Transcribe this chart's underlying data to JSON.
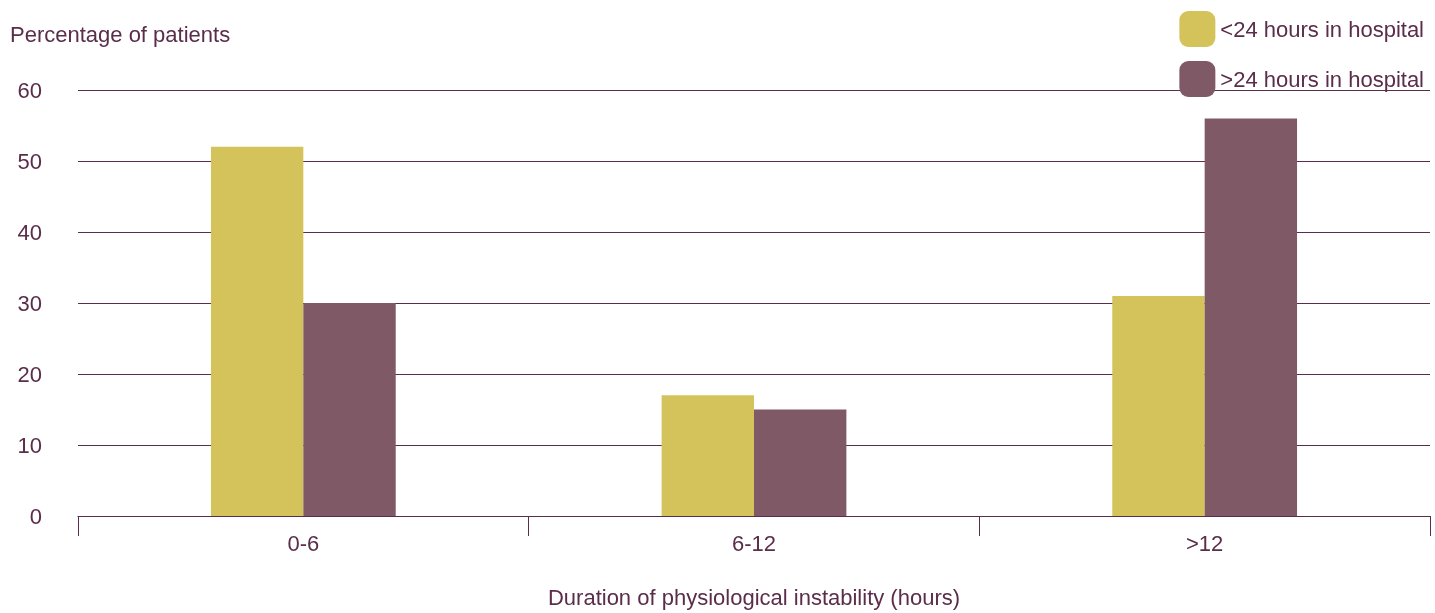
{
  "chart_data": {
    "type": "bar",
    "ylabel": "Percentage of patients",
    "xlabel": "Duration of physiological instability (hours)",
    "categories": [
      "0-6",
      "6-12",
      ">12"
    ],
    "series": [
      {
        "name": "<24 hours in hospital",
        "color": "#d4c35a",
        "values": [
          52,
          17,
          31
        ]
      },
      {
        "name": ">24 hours in hospital",
        "color": "#7f5a66",
        "values": [
          30,
          15,
          56
        ]
      }
    ],
    "ylim": [
      0,
      60
    ],
    "yticks": [
      0,
      10,
      20,
      30,
      40,
      50,
      60
    ],
    "grid": "y",
    "legend": "top right"
  }
}
